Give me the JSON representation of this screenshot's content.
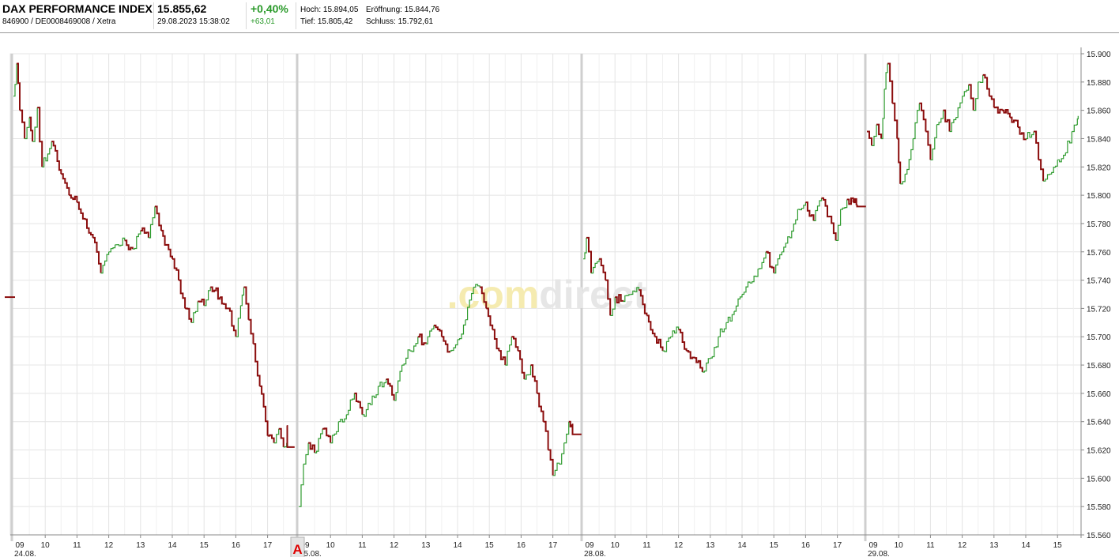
{
  "header": {
    "index_name": "DAX PERFORMANCE INDEX",
    "identifiers": "846900 / DE0008469008 / Xetra",
    "price": "15.855,62",
    "datetime": "29.08.2023 15:38:02",
    "change_pct": "+0,40%",
    "change_abs": "+63,01",
    "high_label": "Hoch:",
    "high_value": "15.894,05",
    "open_label": "Eröffnung:",
    "open_value": "15.844,76",
    "low_label": "Tief:",
    "low_value": "15.805,42",
    "close_label": "Schluss:",
    "close_value": "15.792,61"
  },
  "colors": {
    "up": "#2e9b2e",
    "down": "#8b0d0d",
    "grid": "#e4e4e4",
    "separator": "#cfcfcf",
    "marker": "#e00000"
  },
  "watermark": {
    "part1": ".com",
    "part2": "direct"
  },
  "marker": {
    "label": "A",
    "x_session": 1,
    "x_hour": 9.0
  },
  "chart_data": {
    "type": "line",
    "title": "DAX PERFORMANCE INDEX intraday",
    "ylim": [
      15560,
      15900
    ],
    "yticks": [
      15560,
      15580,
      15600,
      15620,
      15640,
      15660,
      15680,
      15700,
      15720,
      15740,
      15760,
      15780,
      15800,
      15820,
      15840,
      15860,
      15880,
      15900
    ],
    "ytick_labels": [
      "15.560",
      "15.580",
      "15.600",
      "15.620",
      "15.640",
      "15.660",
      "15.680",
      "15.700",
      "15.720",
      "15.740",
      "15.760",
      "15.780",
      "15.800",
      "15.820",
      "15.840",
      "15.860",
      "15.880",
      "15.900"
    ],
    "sessions": [
      {
        "date_label": "24.08.",
        "start_hour": 9.0,
        "end_hour": 17.6,
        "open_hour_label": "09",
        "hour_labels": [
          "10",
          "11",
          "12",
          "13",
          "14",
          "15",
          "16",
          "17"
        ],
        "prev_close": 15728,
        "points": [
          [
            9.0,
            15870
          ],
          [
            9.1,
            15893
          ],
          [
            9.2,
            15860
          ],
          [
            9.35,
            15840
          ],
          [
            9.5,
            15855
          ],
          [
            9.6,
            15838
          ],
          [
            9.75,
            15862
          ],
          [
            9.9,
            15820
          ],
          [
            10.2,
            15838
          ],
          [
            10.5,
            15815
          ],
          [
            10.75,
            15800
          ],
          [
            11.0,
            15795
          ],
          [
            11.25,
            15783
          ],
          [
            11.5,
            15770
          ],
          [
            11.75,
            15745
          ],
          [
            12.0,
            15760
          ],
          [
            12.2,
            15765
          ],
          [
            12.5,
            15768
          ],
          [
            12.75,
            15762
          ],
          [
            13.0,
            15775
          ],
          [
            13.25,
            15770
          ],
          [
            13.45,
            15792
          ],
          [
            13.65,
            15775
          ],
          [
            14.0,
            15755
          ],
          [
            14.2,
            15740
          ],
          [
            14.4,
            15720
          ],
          [
            14.6,
            15710
          ],
          [
            14.8,
            15725
          ],
          [
            15.0,
            15722
          ],
          [
            15.2,
            15735
          ],
          [
            15.5,
            15728
          ],
          [
            15.75,
            15720
          ],
          [
            16.0,
            15700
          ],
          [
            16.15,
            15722
          ],
          [
            16.25,
            15735
          ],
          [
            16.4,
            15712
          ],
          [
            16.55,
            15695
          ],
          [
            16.75,
            15665
          ],
          [
            17.0,
            15630
          ],
          [
            17.2,
            15625
          ],
          [
            17.35,
            15635
          ],
          [
            17.5,
            15622
          ],
          [
            17.6,
            15625
          ]
        ],
        "auction": [
          [
            17.6,
            15637
          ],
          [
            17.62,
            15622
          ],
          [
            17.85,
            15622
          ]
        ]
      },
      {
        "date_label": "25.08.",
        "start_hour": 9.0,
        "end_hour": 17.6,
        "open_hour_label": "09",
        "hour_labels": [
          "10",
          "11",
          "12",
          "13",
          "14",
          "15",
          "16",
          "17"
        ],
        "points": [
          [
            9.0,
            15580
          ],
          [
            9.15,
            15610
          ],
          [
            9.3,
            15625
          ],
          [
            9.5,
            15618
          ],
          [
            9.75,
            15635
          ],
          [
            10.0,
            15625
          ],
          [
            10.25,
            15640
          ],
          [
            10.5,
            15645
          ],
          [
            10.75,
            15660
          ],
          [
            11.0,
            15645
          ],
          [
            11.25,
            15652
          ],
          [
            11.5,
            15665
          ],
          [
            11.75,
            15670
          ],
          [
            12.0,
            15655
          ],
          [
            12.25,
            15680
          ],
          [
            12.5,
            15690
          ],
          [
            12.75,
            15700
          ],
          [
            13.0,
            15695
          ],
          [
            13.25,
            15708
          ],
          [
            13.5,
            15700
          ],
          [
            13.75,
            15690
          ],
          [
            14.0,
            15698
          ],
          [
            14.25,
            15712
          ],
          [
            14.5,
            15735
          ],
          [
            14.7,
            15735
          ],
          [
            14.9,
            15720
          ],
          [
            15.1,
            15705
          ],
          [
            15.3,
            15690
          ],
          [
            15.5,
            15680
          ],
          [
            15.7,
            15700
          ],
          [
            15.9,
            15690
          ],
          [
            16.1,
            15670
          ],
          [
            16.3,
            15680
          ],
          [
            16.5,
            15660
          ],
          [
            16.7,
            15640
          ],
          [
            16.85,
            15620
          ],
          [
            17.0,
            15602
          ],
          [
            17.2,
            15610
          ],
          [
            17.35,
            15625
          ],
          [
            17.5,
            15640
          ],
          [
            17.6,
            15638
          ]
        ],
        "auction": [
          [
            17.6,
            15638
          ],
          [
            17.62,
            15631
          ],
          [
            17.9,
            15631
          ]
        ]
      },
      {
        "date_label": "28.08.",
        "start_hour": 9.0,
        "end_hour": 17.6,
        "open_hour_label": "09",
        "hour_labels": [
          "10",
          "11",
          "12",
          "13",
          "14",
          "15",
          "16",
          "17"
        ],
        "points": [
          [
            9.0,
            15755
          ],
          [
            9.1,
            15770
          ],
          [
            9.25,
            15745
          ],
          [
            9.5,
            15755
          ],
          [
            9.7,
            15740
          ],
          [
            9.85,
            15715
          ],
          [
            10.0,
            15728
          ],
          [
            10.25,
            15725
          ],
          [
            10.5,
            15730
          ],
          [
            10.75,
            15733
          ],
          [
            11.0,
            15715
          ],
          [
            11.25,
            15700
          ],
          [
            11.5,
            15690
          ],
          [
            11.75,
            15700
          ],
          [
            12.0,
            15705
          ],
          [
            12.25,
            15690
          ],
          [
            12.5,
            15685
          ],
          [
            12.75,
            15675
          ],
          [
            13.0,
            15685
          ],
          [
            13.25,
            15700
          ],
          [
            13.5,
            15710
          ],
          [
            13.75,
            15718
          ],
          [
            14.0,
            15730
          ],
          [
            14.25,
            15738
          ],
          [
            14.5,
            15748
          ],
          [
            14.75,
            15760
          ],
          [
            15.0,
            15745
          ],
          [
            15.25,
            15760
          ],
          [
            15.5,
            15770
          ],
          [
            15.75,
            15790
          ],
          [
            16.0,
            15795
          ],
          [
            16.25,
            15782
          ],
          [
            16.5,
            15798
          ],
          [
            16.75,
            15785
          ],
          [
            16.95,
            15768
          ],
          [
            17.1,
            15790
          ],
          [
            17.3,
            15797
          ],
          [
            17.5,
            15795
          ],
          [
            17.6,
            15793
          ]
        ],
        "auction": [
          [
            17.6,
            15793
          ],
          [
            17.62,
            15792
          ],
          [
            17.9,
            15792
          ]
        ]
      },
      {
        "date_label": "29.08.",
        "start_hour": 9.0,
        "end_hour": 15.65,
        "open_hour_label": "09",
        "hour_labels": [
          "10",
          "11",
          "12",
          "13",
          "14",
          "15"
        ],
        "points": [
          [
            9.0,
            15845
          ],
          [
            9.15,
            15835
          ],
          [
            9.3,
            15850
          ],
          [
            9.45,
            15840
          ],
          [
            9.55,
            15875
          ],
          [
            9.65,
            15893
          ],
          [
            9.8,
            15865
          ],
          [
            9.95,
            15840
          ],
          [
            10.05,
            15808
          ],
          [
            10.2,
            15815
          ],
          [
            10.45,
            15840
          ],
          [
            10.65,
            15865
          ],
          [
            10.85,
            15845
          ],
          [
            11.0,
            15825
          ],
          [
            11.2,
            15850
          ],
          [
            11.4,
            15860
          ],
          [
            11.6,
            15845
          ],
          [
            11.8,
            15855
          ],
          [
            12.0,
            15870
          ],
          [
            12.2,
            15878
          ],
          [
            12.35,
            15860
          ],
          [
            12.5,
            15880
          ],
          [
            12.65,
            15885
          ],
          [
            12.85,
            15870
          ],
          [
            13.0,
            15862
          ],
          [
            13.25,
            15860
          ],
          [
            13.5,
            15855
          ],
          [
            13.75,
            15848
          ],
          [
            14.0,
            15840
          ],
          [
            14.25,
            15845
          ],
          [
            14.4,
            15825
          ],
          [
            14.55,
            15810
          ],
          [
            14.75,
            15815
          ],
          [
            15.0,
            15825
          ],
          [
            15.25,
            15830
          ],
          [
            15.45,
            15845
          ],
          [
            15.6,
            15850
          ],
          [
            15.65,
            15856
          ]
        ]
      }
    ]
  }
}
